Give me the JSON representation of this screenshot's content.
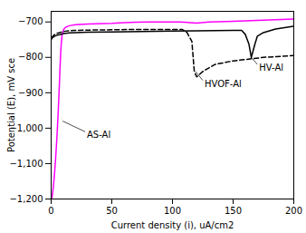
{
  "chart_data": {
    "type": "line",
    "title": "",
    "xlabel": "Current density (i), uA/cm2",
    "ylabel": "Potential (E), mV sce",
    "xlim": [
      0,
      200
    ],
    "ylim": [
      -1200,
      -670
    ],
    "xticks": [
      0,
      50,
      100,
      150,
      200
    ],
    "yticks": [
      -1200,
      -1100,
      -1000,
      -900,
      -800,
      -700
    ],
    "grid": false,
    "series": [
      {
        "name": "AS-Al",
        "color": "#ff00ff",
        "line_style": "solid",
        "x": [
          0.5,
          1.0,
          1.5,
          2.0,
          2.5,
          3.0,
          3.5,
          4.0,
          4.5,
          5.0,
          5.5,
          6.0,
          6.5,
          7.0,
          7.5,
          8.0,
          8.5,
          9.0,
          9.5,
          10.0,
          11.0,
          12.0,
          14.0,
          16.0,
          20.0,
          30.0,
          50.0,
          60.0,
          70.0,
          80.0,
          90.0,
          100.0,
          105.0,
          110.0,
          115.0,
          120.0,
          130.0,
          150.0,
          175.0,
          200.0
        ],
        "values": [
          -1200,
          -1190,
          -1175,
          -1158,
          -1140,
          -1118,
          -1095,
          -1068,
          -1040,
          -1010,
          -975,
          -940,
          -900,
          -858,
          -815,
          -778,
          -755,
          -738,
          -730,
          -724,
          -718,
          -715,
          -712,
          -710,
          -708,
          -706,
          -704,
          -702,
          -701,
          -700,
          -700,
          -700,
          -700,
          -701,
          -702,
          -703,
          -700,
          -698,
          -695,
          -692
        ]
      },
      {
        "name": "HVOF-Al",
        "color": "#000000",
        "line_style": "dashed",
        "x": [
          0.5,
          1.0,
          2.0,
          3.0,
          5.0,
          7.0,
          9.0,
          10.0,
          12.0,
          15.0,
          20.0,
          30.0,
          50.0,
          75.0,
          100.0,
          108.0,
          112.0,
          116.0,
          118.0,
          120.0,
          125.0,
          135.0,
          150.0,
          175.0,
          200.0
        ],
        "values": [
          -745,
          -742,
          -738,
          -735,
          -732,
          -730,
          -728,
          -727,
          -726,
          -725,
          -724,
          -723,
          -722,
          -721,
          -721,
          -721,
          -730,
          -755,
          -840,
          -855,
          -840,
          -820,
          -810,
          -800,
          -795
        ]
      },
      {
        "name": "HV-Al",
        "color": "#000000",
        "line_style": "solid",
        "x": [
          0.5,
          1.0,
          2.0,
          3.0,
          5.0,
          7.0,
          9.0,
          10.0,
          12.0,
          15.0,
          20.0,
          30.0,
          50.0,
          75.0,
          100.0,
          120.0,
          150.0,
          157.0,
          160.0,
          163.0,
          165.0,
          168.0,
          170.0,
          175.0,
          185.0,
          200.0
        ],
        "values": [
          -748,
          -745,
          -742,
          -740,
          -737,
          -736,
          -734,
          -733,
          -732,
          -731,
          -730,
          -729,
          -728,
          -727,
          -726,
          -725,
          -724,
          -724,
          -735,
          -762,
          -800,
          -762,
          -740,
          -730,
          -720,
          -712
        ]
      }
    ],
    "annotations": [
      {
        "text": "AS-Al",
        "xy": [
          9.5,
          -980
        ],
        "xytext": [
          28,
          -1010
        ]
      },
      {
        "text": "HVOF-Al",
        "xy": [
          119,
          -840
        ],
        "xytext": [
          125,
          -865
        ]
      },
      {
        "text": "HV-Al",
        "xy": [
          165,
          -800
        ],
        "xytext": [
          170,
          -820
        ]
      }
    ]
  }
}
